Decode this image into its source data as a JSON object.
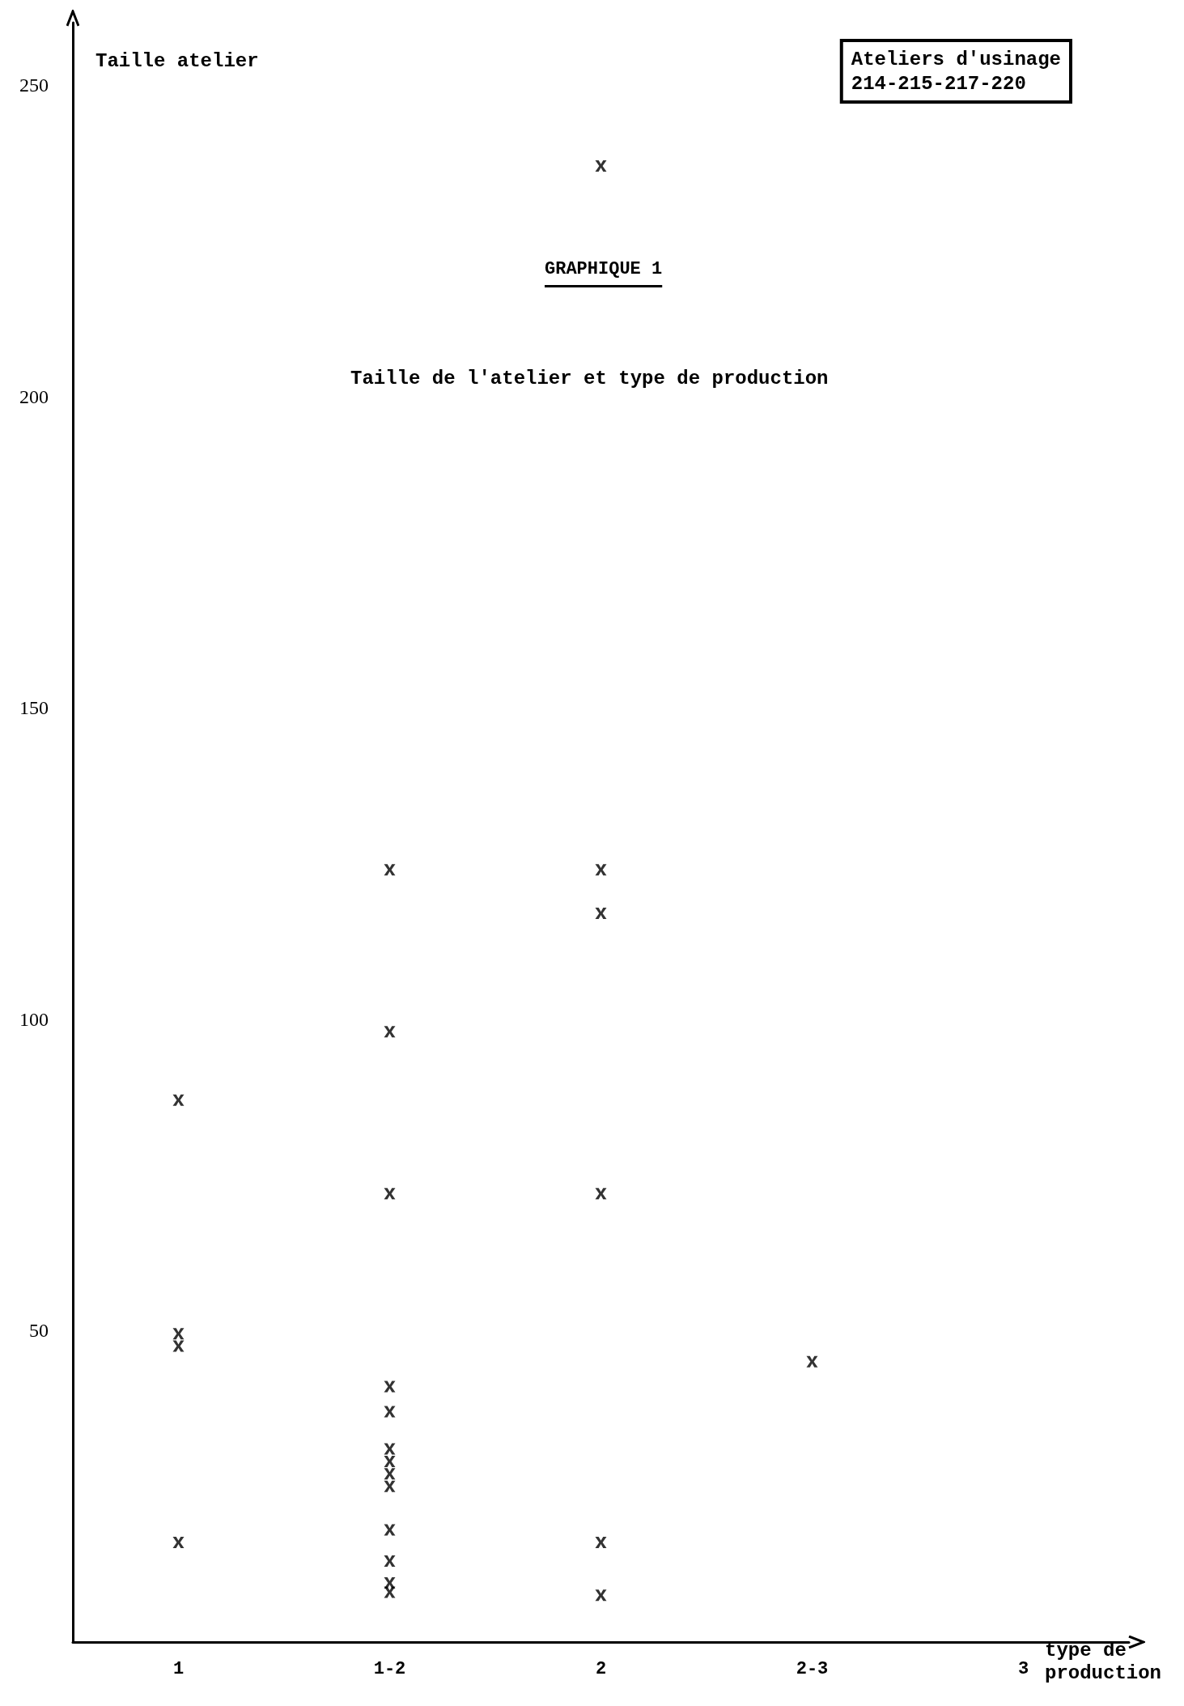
{
  "chart_data": {
    "type": "scatter",
    "title": "GRAPHIQUE 1",
    "subtitle": "Taille de l'atelier et type de production",
    "xlabel": "type de production",
    "ylabel": "Taille atelier",
    "annotations": [
      "Ateliers d'usinage\n214-215-217-220"
    ],
    "categories": [
      "1",
      "1-2",
      "2",
      "2-3",
      "3"
    ],
    "series": [
      {
        "color": "#000000",
        "x": [
          "1",
          "1",
          "1",
          "1",
          "1-2",
          "1-2",
          "1-2",
          "1-2",
          "1-2",
          "1-2",
          "1-2",
          "1-2",
          "1-2",
          "1-2",
          "1-2",
          "1-2",
          "1-2",
          "2",
          "2",
          "2",
          "2",
          "2",
          "2",
          "2-3"
        ],
        "values": [
          87,
          49.5,
          47.5,
          16,
          124,
          98,
          72,
          41,
          37,
          31,
          29,
          27,
          25,
          18,
          13,
          9.5,
          8,
          237,
          124,
          117,
          72,
          16,
          7.5,
          45
        ]
      }
    ],
    "ylim": [
      0,
      260
    ],
    "yticks": [
      50,
      100,
      150,
      200,
      250
    ],
    "grid": false,
    "marker": "cross"
  }
}
